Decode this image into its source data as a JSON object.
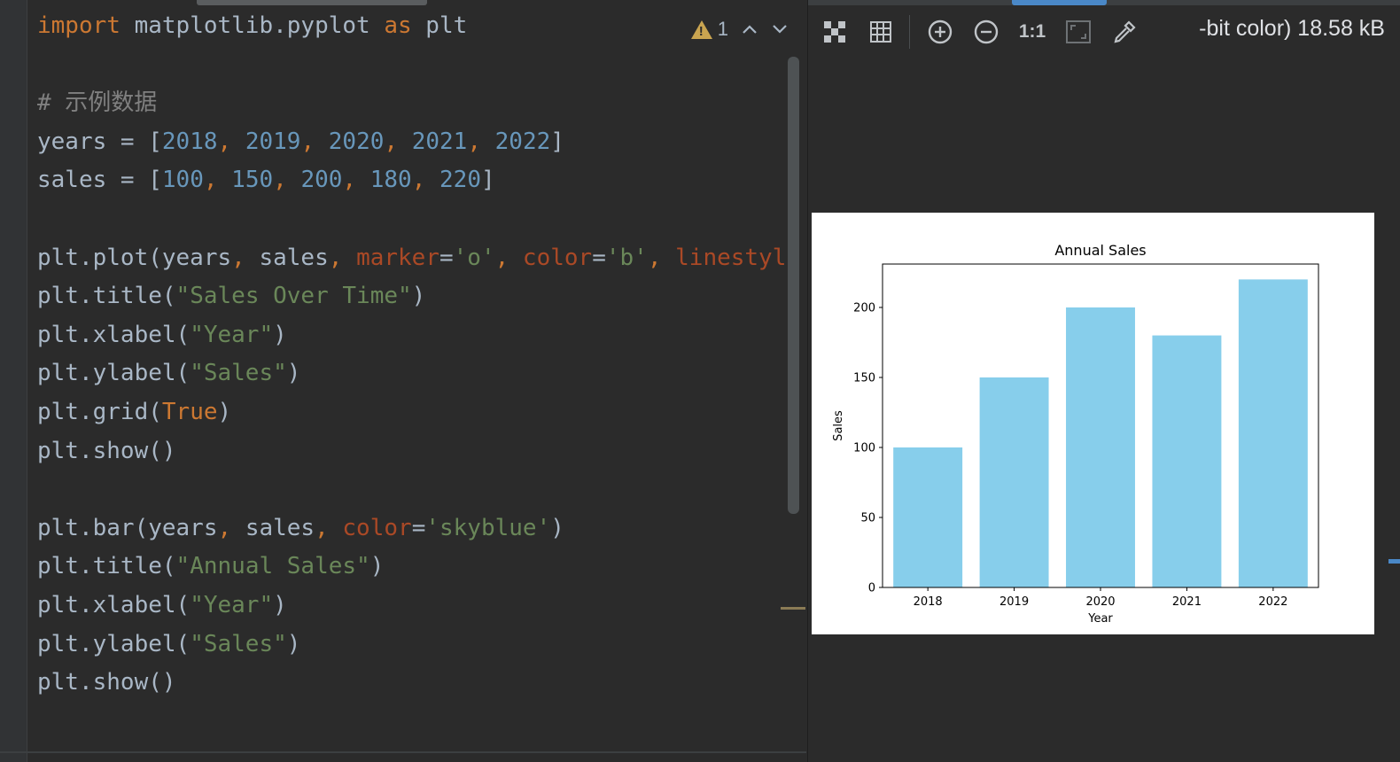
{
  "editor": {
    "code_lines": [
      [
        {
          "t": "import",
          "c": "kw"
        },
        {
          "t": " matplotlib.pyplot ",
          "c": ""
        },
        {
          "t": "as",
          "c": "kw"
        },
        {
          "t": " plt",
          "c": ""
        }
      ],
      [],
      [
        {
          "t": "# 示例数据",
          "c": "cmt"
        }
      ],
      [
        {
          "t": "years = [",
          "c": ""
        },
        {
          "t": "2018",
          "c": "num"
        },
        {
          "t": ", ",
          "c": "kwa"
        },
        {
          "t": "2019",
          "c": "num"
        },
        {
          "t": ", ",
          "c": "kwa"
        },
        {
          "t": "2020",
          "c": "num"
        },
        {
          "t": ", ",
          "c": "kwa"
        },
        {
          "t": "2021",
          "c": "num"
        },
        {
          "t": ", ",
          "c": "kwa"
        },
        {
          "t": "2022",
          "c": "num"
        },
        {
          "t": "]",
          "c": ""
        }
      ],
      [
        {
          "t": "sales = [",
          "c": ""
        },
        {
          "t": "100",
          "c": "num"
        },
        {
          "t": ", ",
          "c": "kwa"
        },
        {
          "t": "150",
          "c": "num"
        },
        {
          "t": ", ",
          "c": "kwa"
        },
        {
          "t": "200",
          "c": "num"
        },
        {
          "t": ", ",
          "c": "kwa"
        },
        {
          "t": "180",
          "c": "num"
        },
        {
          "t": ", ",
          "c": "kwa"
        },
        {
          "t": "220",
          "c": "num"
        },
        {
          "t": "]",
          "c": ""
        }
      ],
      [],
      [
        {
          "t": "plt.plot(years",
          "c": ""
        },
        {
          "t": ", ",
          "c": "kwa"
        },
        {
          "t": "sales",
          "c": ""
        },
        {
          "t": ", ",
          "c": "kwa"
        },
        {
          "t": "marker",
          "c": "par"
        },
        {
          "t": "=",
          "c": ""
        },
        {
          "t": "'o'",
          "c": "str"
        },
        {
          "t": ", ",
          "c": "kwa"
        },
        {
          "t": "color",
          "c": "par"
        },
        {
          "t": "=",
          "c": ""
        },
        {
          "t": "'b'",
          "c": "str"
        },
        {
          "t": ", ",
          "c": "kwa"
        },
        {
          "t": "linestyle",
          "c": "par"
        }
      ],
      [
        {
          "t": "plt.title(",
          "c": ""
        },
        {
          "t": "\"Sales Over Time\"",
          "c": "str"
        },
        {
          "t": ")",
          "c": ""
        }
      ],
      [
        {
          "t": "plt.xlabel(",
          "c": ""
        },
        {
          "t": "\"Year\"",
          "c": "str"
        },
        {
          "t": ")",
          "c": ""
        }
      ],
      [
        {
          "t": "plt.ylabel(",
          "c": ""
        },
        {
          "t": "\"Sales\"",
          "c": "str"
        },
        {
          "t": ")",
          "c": ""
        }
      ],
      [
        {
          "t": "plt.grid(",
          "c": ""
        },
        {
          "t": "True",
          "c": "kw"
        },
        {
          "t": ")",
          "c": ""
        }
      ],
      [
        {
          "t": "plt.show()",
          "c": ""
        }
      ],
      [],
      [
        {
          "t": "plt.bar(years",
          "c": ""
        },
        {
          "t": ", ",
          "c": "kwa"
        },
        {
          "t": "sales",
          "c": ""
        },
        {
          "t": ", ",
          "c": "kwa"
        },
        {
          "t": "color",
          "c": "par"
        },
        {
          "t": "=",
          "c": ""
        },
        {
          "t": "'skyblue'",
          "c": "str"
        },
        {
          "t": ")",
          "c": ""
        }
      ],
      [
        {
          "t": "plt.title(",
          "c": ""
        },
        {
          "t": "\"Annual Sales\"",
          "c": "str"
        },
        {
          "t": ")",
          "c": ""
        }
      ],
      [
        {
          "t": "plt.xlabel(",
          "c": ""
        },
        {
          "t": "\"Year\"",
          "c": "str"
        },
        {
          "t": ")",
          "c": ""
        }
      ],
      [
        {
          "t": "plt.ylabel(",
          "c": ""
        },
        {
          "t": "\"Sales\"",
          "c": "str"
        },
        {
          "t": ")",
          "c": ""
        }
      ],
      [
        {
          "t": "plt.show()",
          "c": ""
        }
      ]
    ],
    "inspection_count": "1"
  },
  "viewer": {
    "toolbar": [
      {
        "name": "fit-zoom-button",
        "icon": "fit-zoom-icon"
      },
      {
        "name": "grid-toggle-button",
        "icon": "grid-icon"
      },
      {
        "name": "zoom-in-button",
        "icon": "zoom-in-icon"
      },
      {
        "name": "zoom-out-button",
        "icon": "zoom-out-icon"
      },
      {
        "name": "actual-size-button",
        "icon": "actual-size-icon",
        "label": "1:1"
      },
      {
        "name": "fit-window-button",
        "icon": "fit-window-icon"
      },
      {
        "name": "color-picker-button",
        "icon": "eyedropper-icon"
      }
    ],
    "image_info": "-bit color) 18.58 kB"
  },
  "chart_data": {
    "type": "bar",
    "title": "Annual Sales",
    "xlabel": "Year",
    "ylabel": "Sales",
    "categories": [
      "2018",
      "2019",
      "2020",
      "2021",
      "2022"
    ],
    "values": [
      100,
      150,
      200,
      180,
      220
    ],
    "ylim": [
      0,
      231
    ],
    "yticks": [
      0,
      50,
      100,
      150,
      200
    ],
    "color": "#87ceeb",
    "grid": false
  }
}
